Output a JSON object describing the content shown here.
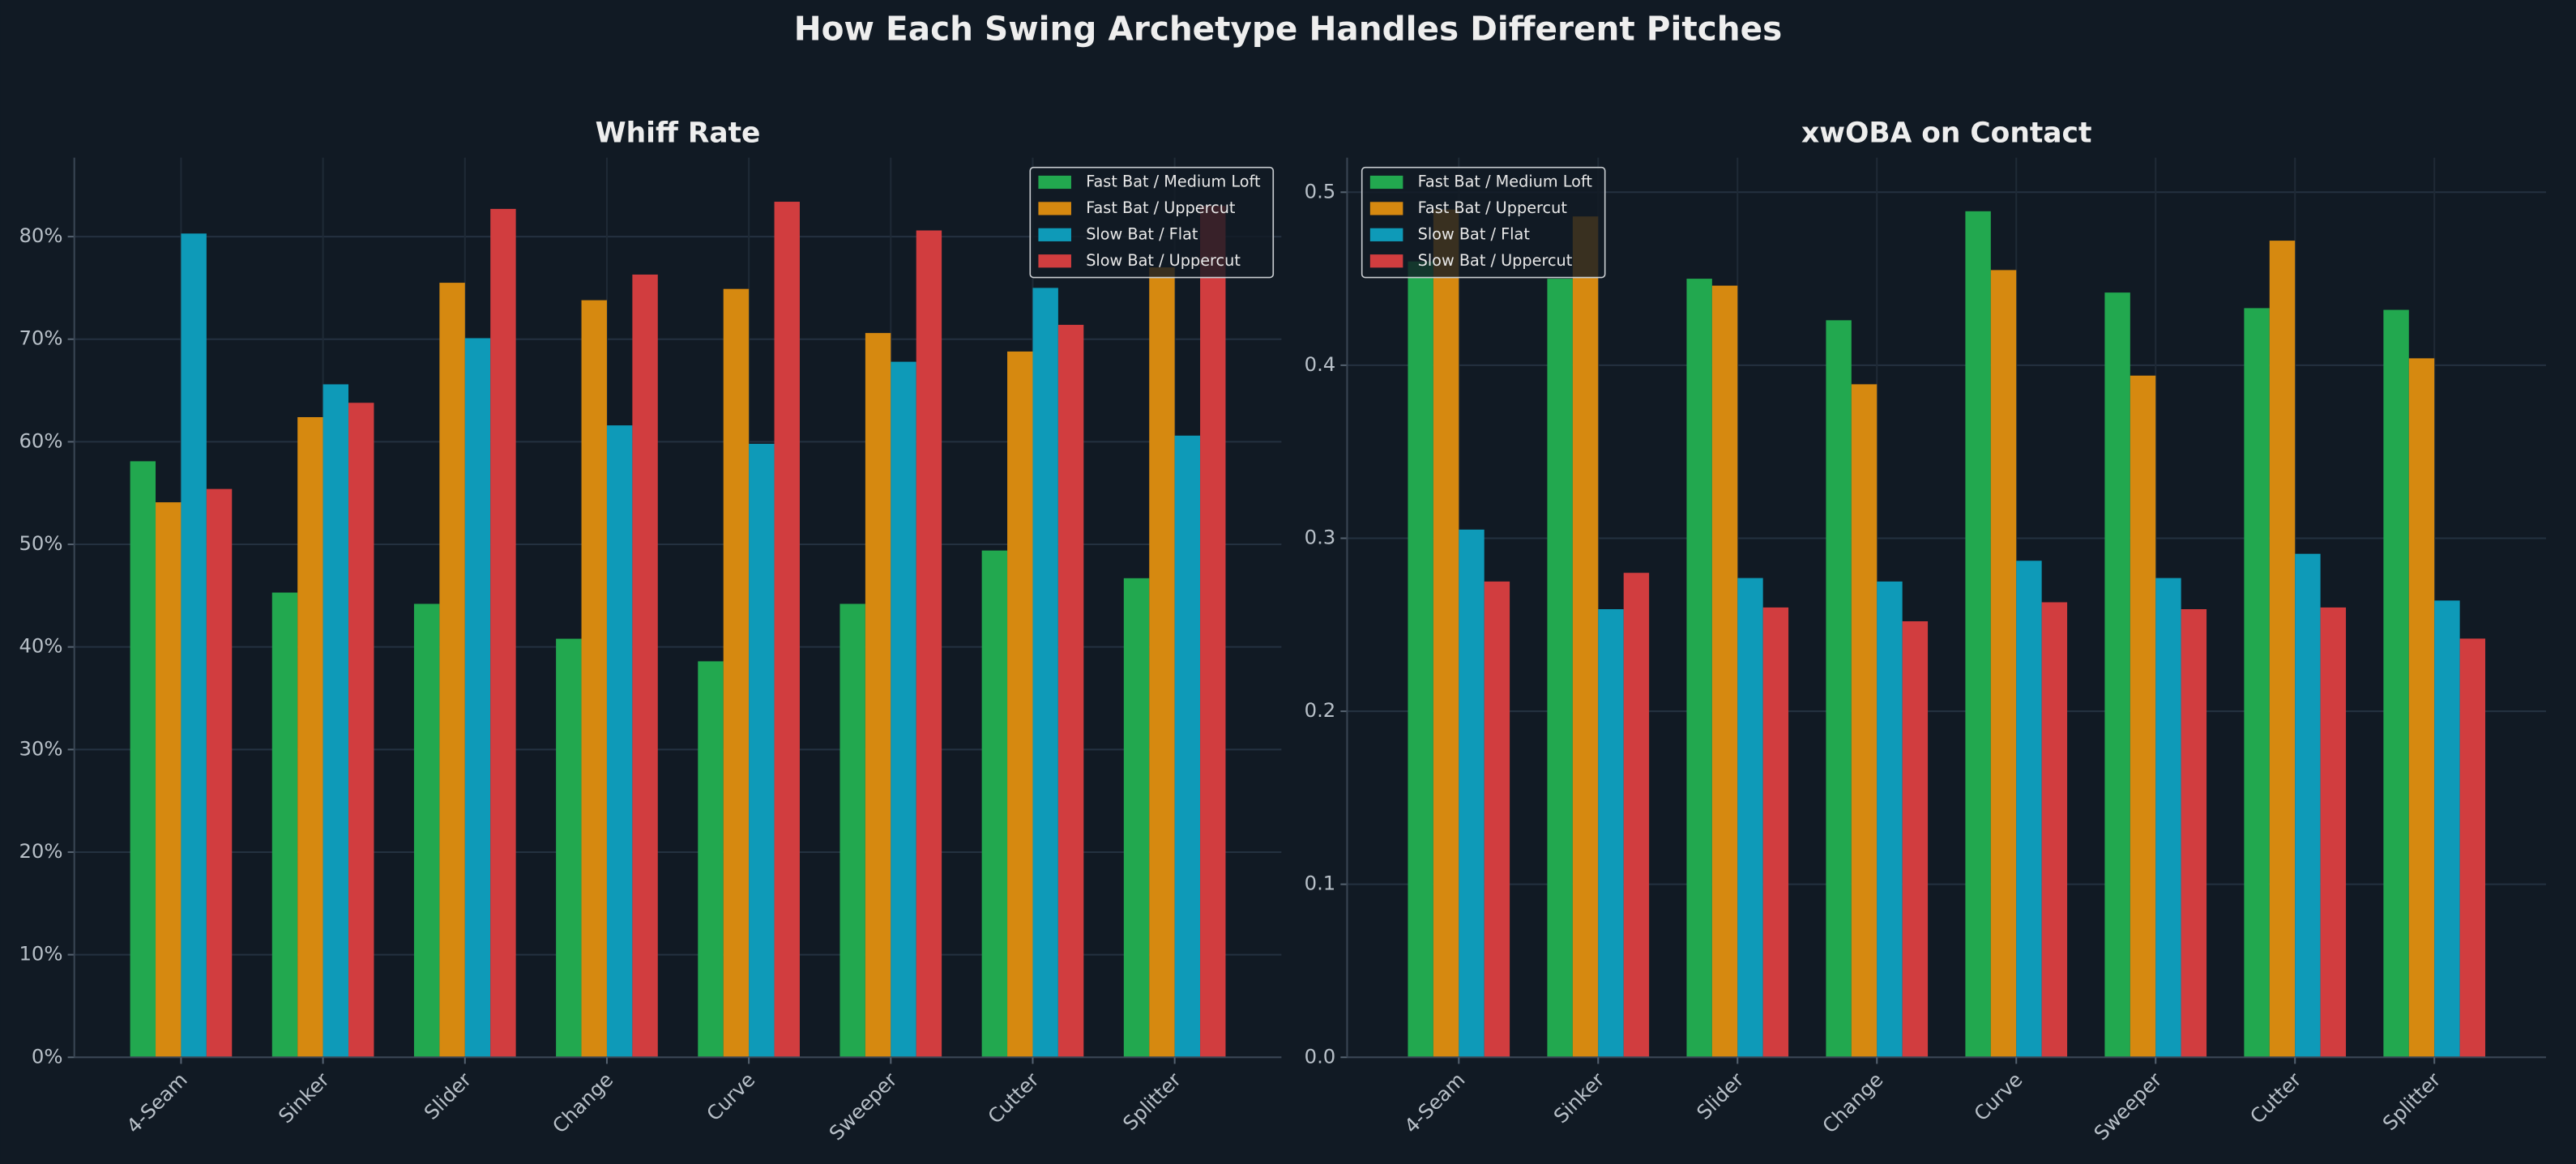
{
  "title": "How Each Swing Archetype Handles Different Pitches",
  "chart_data": [
    {
      "type": "bar",
      "title": "Whiff Rate",
      "categories": [
        "4-Seam",
        "Sinker",
        "Slider",
        "Change",
        "Curve",
        "Sweeper",
        "Cutter",
        "Splitter"
      ],
      "series": [
        {
          "name": "Fast Bat / Medium Loft",
          "color": "#22a84f",
          "values": [
            58.1,
            45.3,
            44.2,
            40.8,
            38.6,
            44.2,
            49.4,
            46.7
          ]
        },
        {
          "name": "Fast Bat / Uppercut",
          "color": "#d68910",
          "values": [
            54.1,
            62.4,
            75.5,
            73.8,
            74.9,
            70.6,
            68.8,
            77
          ]
        },
        {
          "name": "Slow Bat / Flat",
          "color": "#0e9ab8",
          "values": [
            80.3,
            65.6,
            70.1,
            61.6,
            59.8,
            67.8,
            75.0,
            60.6
          ]
        },
        {
          "name": "Slow Bat / Uppercut",
          "color": "#d13d3f",
          "values": [
            55.4,
            63.8,
            82.7,
            76.3,
            83.4,
            80.6,
            71.4,
            83
          ]
        }
      ],
      "ylim": [
        0,
        87.7
      ],
      "yticks": [
        {
          "value": 0,
          "label": "0%"
        },
        {
          "value": 10,
          "label": "10%"
        },
        {
          "value": 20,
          "label": "20%"
        },
        {
          "value": 30,
          "label": "30%"
        },
        {
          "value": 40,
          "label": "40%"
        },
        {
          "value": 50,
          "label": "50%"
        },
        {
          "value": 60,
          "label": "60%"
        },
        {
          "value": 70,
          "label": "70%"
        },
        {
          "value": 80,
          "label": "80%"
        }
      ],
      "grid": true,
      "legend": "upper right"
    },
    {
      "type": "bar",
      "title": "xwOBA on Contact",
      "categories": [
        "4-Seam",
        "Sinker",
        "Slider",
        "Change",
        "Curve",
        "Sweeper",
        "Cutter",
        "Splitter"
      ],
      "series": [
        {
          "name": "Fast Bat / Medium Loft",
          "color": "#22a84f",
          "values": [
            0.46,
            0.45,
            0.45,
            0.426,
            0.489,
            0.442,
            0.433,
            0.432
          ]
        },
        {
          "name": "Fast Bat / Uppercut",
          "color": "#d68910",
          "values": [
            0.49,
            0.486,
            0.446,
            0.389,
            0.455,
            0.394,
            0.472,
            0.404
          ]
        },
        {
          "name": "Slow Bat / Flat",
          "color": "#0e9ab8",
          "values": [
            0.305,
            0.259,
            0.277,
            0.275,
            0.287,
            0.277,
            0.291,
            0.264
          ]
        },
        {
          "name": "Slow Bat / Uppercut",
          "color": "#d13d3f",
          "values": [
            0.275,
            0.28,
            0.26,
            0.252,
            0.263,
            0.259,
            0.26,
            0.242
          ]
        }
      ],
      "ylim": [
        0,
        0.52
      ],
      "yticks": [
        {
          "value": 0,
          "label": "0.0"
        },
        0.1,
        0.2,
        0.3,
        0.4,
        0.5
      ],
      "grid": true,
      "legend": "upper left"
    }
  ]
}
